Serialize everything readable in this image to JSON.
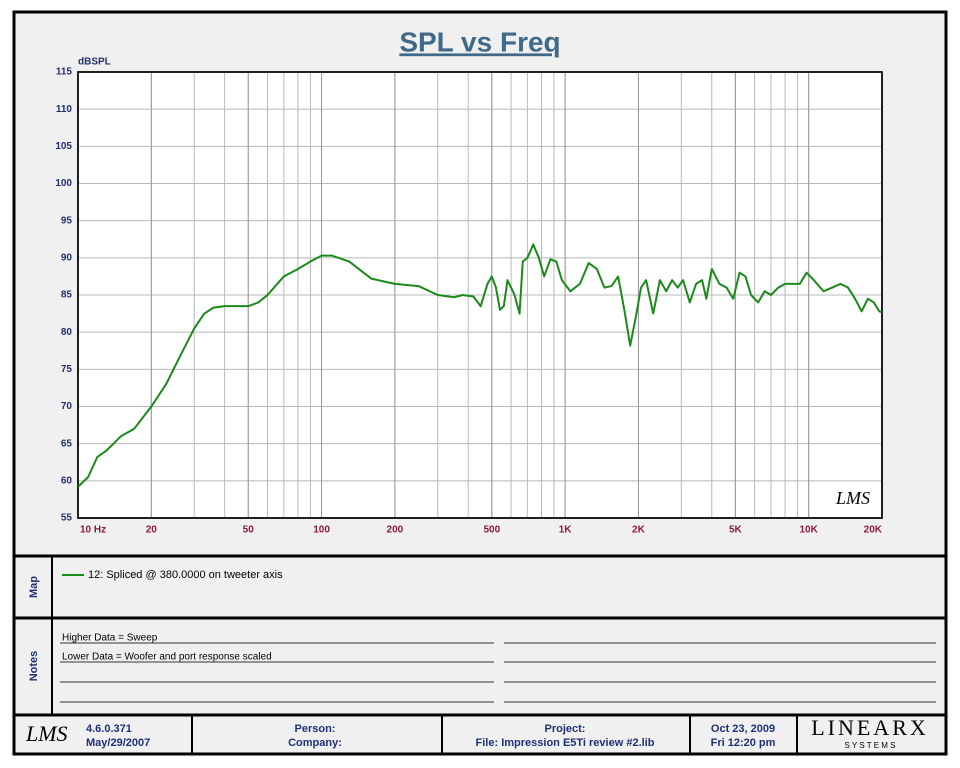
{
  "chart_data": {
    "type": "line",
    "title": "SPL vs Freq",
    "y_label": "dBSPL",
    "annotation": "LMS",
    "x_scale": "log",
    "grid": true,
    "xlim": [
      10,
      20000
    ],
    "ylim": [
      55,
      115
    ],
    "xticks": [
      {
        "value": 10,
        "label": "10  Hz"
      },
      20,
      50,
      100,
      200,
      500,
      {
        "value": 1000,
        "label": "1K"
      },
      {
        "value": 2000,
        "label": "2K"
      },
      {
        "value": 5000,
        "label": "5K"
      },
      {
        "value": 10000,
        "label": "10K"
      },
      {
        "value": 20000,
        "label": "20K"
      }
    ],
    "yticks": [
      55,
      60,
      65,
      70,
      75,
      80,
      85,
      90,
      95,
      100,
      105,
      110,
      115
    ],
    "x": [
      10,
      11,
      12,
      13,
      14,
      15,
      17,
      20,
      23,
      26,
      30,
      33,
      36,
      40,
      50,
      55,
      60,
      70,
      80,
      90,
      100,
      110,
      130,
      160,
      200,
      250,
      300,
      350,
      380,
      420,
      450,
      480,
      500,
      520,
      540,
      560,
      580,
      600,
      620,
      650,
      670,
      700,
      740,
      780,
      820,
      870,
      920,
      970,
      1050,
      1150,
      1250,
      1350,
      1450,
      1550,
      1650,
      1750,
      1850,
      1950,
      2050,
      2150,
      2300,
      2450,
      2600,
      2750,
      2900,
      3050,
      3250,
      3450,
      3650,
      3800,
      4000,
      4300,
      4600,
      4900,
      5200,
      5500,
      5800,
      6200,
      6600,
      7000,
      7500,
      8000,
      8600,
      9200,
      9800,
      10500,
      11500,
      12500,
      13500,
      14500,
      15500,
      16500,
      17500,
      18500,
      19500,
      20000
    ],
    "series": [
      {
        "name": "12: Spliced @ 380.0000  on tweeter axis",
        "color": "#1a8a1a",
        "values": [
          59.2,
          60.5,
          63.2,
          64,
          65,
          66,
          67,
          70,
          73,
          76.5,
          80.5,
          82.5,
          83.3,
          83.5,
          83.5,
          84,
          85,
          87.5,
          88.5,
          89.5,
          90.3,
          90.3,
          89.5,
          87.2,
          86.5,
          86.2,
          85,
          84.7,
          85,
          84.8,
          83.5,
          86.5,
          87.5,
          86,
          83,
          83.5,
          87,
          86,
          85,
          82.5,
          89.5,
          90,
          91.8,
          90,
          87.5,
          89.8,
          89.5,
          87,
          85.5,
          86.5,
          89.3,
          88.5,
          86,
          86.2,
          87.5,
          83,
          78.2,
          82,
          86,
          87,
          82.5,
          87,
          85.5,
          87,
          86,
          87,
          84,
          86.5,
          87,
          84.5,
          88.5,
          86.5,
          86,
          84.5,
          88,
          87.5,
          85,
          84,
          85.5,
          85,
          86,
          86.5,
          86.5,
          86.5,
          88,
          87,
          85.5,
          86,
          86.5,
          86,
          84.5,
          82.8,
          84.5,
          84,
          82.8,
          82.7
        ]
      }
    ]
  },
  "panels": {
    "map_label": "Map",
    "notes_label": "Notes"
  },
  "notes": [
    "Higher Data = Sweep",
    "Lower  Data = Woofer and port response scaled"
  ],
  "footer": {
    "logo": "LMS",
    "version": "4.6.0.371",
    "version_date": "May/29/2007",
    "person": "Person:",
    "company": "Company:",
    "project": "Project:",
    "file": "File: Impression E5Ti review #2.lib",
    "date": "Oct 23, 2009",
    "time": "Fri 12:20 pm",
    "brand": "LINEARX",
    "brand_sub": "S Y S T E M S"
  }
}
